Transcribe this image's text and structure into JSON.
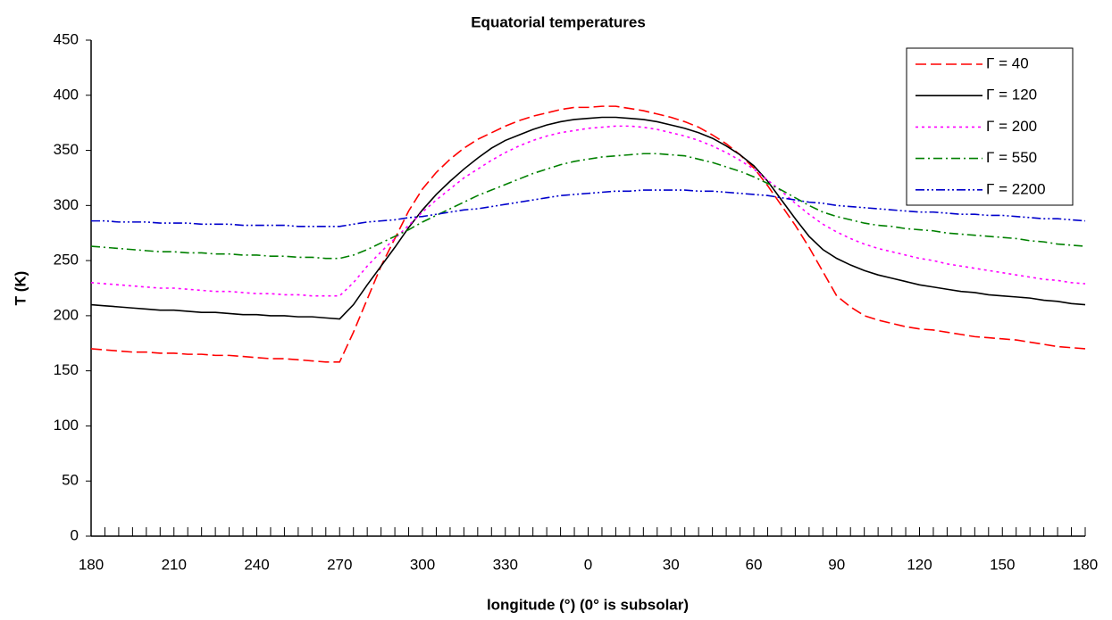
{
  "chart_data": {
    "type": "line",
    "title": "Equatorial temperatures",
    "x_label": "longitude (°) (0° is subsolar)",
    "y_label": "T (K)",
    "categories": [
      "180",
      null,
      null,
      null,
      null,
      null,
      "210",
      null,
      null,
      null,
      null,
      null,
      "240",
      null,
      null,
      null,
      null,
      null,
      "270",
      null,
      null,
      null,
      null,
      null,
      "300",
      null,
      null,
      null,
      null,
      null,
      "330",
      null,
      null,
      null,
      null,
      null,
      "0",
      null,
      null,
      null,
      null,
      null,
      "30",
      null,
      null,
      null,
      null,
      null,
      "60",
      null,
      null,
      null,
      null,
      null,
      "90",
      null,
      null,
      null,
      null,
      null,
      "120",
      null,
      null,
      null,
      null,
      null,
      "150",
      null,
      null,
      null,
      null,
      null,
      "180"
    ],
    "ylim": [
      0,
      450
    ],
    "yticks": [
      0,
      50,
      100,
      150,
      200,
      250,
      300,
      350,
      400,
      450
    ],
    "grid": false,
    "legend": "top-right",
    "series": [
      {
        "name": "Γ = 40",
        "color": "#ff0000",
        "dash": "dashed",
        "values": [
          170,
          169,
          168,
          167,
          167,
          166,
          166,
          165,
          165,
          164,
          164,
          163,
          162,
          161,
          161,
          160,
          159,
          158,
          158,
          185,
          215,
          245,
          270,
          295,
          315,
          330,
          342,
          352,
          360,
          366,
          372,
          377,
          381,
          384,
          387,
          389,
          389,
          390,
          390,
          388,
          386,
          383,
          380,
          376,
          371,
          364,
          356,
          346,
          334,
          318,
          300,
          282,
          262,
          240,
          218,
          208,
          200,
          196,
          193,
          190,
          188,
          187,
          185,
          183,
          181,
          180,
          179,
          178,
          176,
          174,
          172,
          171,
          170
        ]
      },
      {
        "name": "Γ = 120",
        "color": "#000000",
        "dash": "solid",
        "values": [
          210,
          209,
          208,
          207,
          206,
          205,
          205,
          204,
          203,
          203,
          202,
          201,
          201,
          200,
          200,
          199,
          199,
          198,
          197,
          210,
          228,
          245,
          262,
          280,
          296,
          310,
          322,
          333,
          343,
          352,
          359,
          364,
          369,
          373,
          376,
          378,
          379,
          380,
          380,
          379,
          378,
          376,
          373,
          370,
          366,
          361,
          354,
          346,
          336,
          322,
          305,
          288,
          272,
          260,
          252,
          246,
          241,
          237,
          234,
          231,
          228,
          226,
          224,
          222,
          221,
          219,
          218,
          217,
          216,
          214,
          213,
          211,
          210
        ]
      },
      {
        "name": "Γ = 200",
        "color": "#ff00ff",
        "dash": "dotted",
        "values": [
          230,
          229,
          228,
          227,
          226,
          225,
          225,
          224,
          223,
          222,
          222,
          221,
          220,
          220,
          219,
          219,
          218,
          218,
          218,
          230,
          245,
          258,
          270,
          282,
          294,
          305,
          315,
          325,
          333,
          341,
          348,
          354,
          359,
          363,
          366,
          368,
          370,
          371,
          372,
          372,
          371,
          369,
          366,
          363,
          359,
          354,
          348,
          341,
          333,
          323,
          313,
          302,
          292,
          283,
          276,
          270,
          265,
          261,
          258,
          255,
          252,
          250,
          247,
          245,
          243,
          241,
          239,
          237,
          235,
          233,
          232,
          230,
          229
        ]
      },
      {
        "name": "Γ = 550",
        "color": "#008000",
        "dash": "dashdot",
        "values": [
          263,
          262,
          261,
          260,
          259,
          258,
          258,
          257,
          257,
          256,
          256,
          255,
          255,
          254,
          254,
          253,
          253,
          252,
          252,
          255,
          260,
          266,
          272,
          278,
          285,
          291,
          297,
          303,
          309,
          314,
          319,
          324,
          329,
          333,
          337,
          340,
          342,
          344,
          345,
          346,
          347,
          347,
          346,
          345,
          342,
          339,
          335,
          331,
          326,
          320,
          314,
          307,
          300,
          294,
          290,
          287,
          284,
          282,
          281,
          279,
          278,
          277,
          275,
          274,
          273,
          272,
          271,
          270,
          268,
          267,
          265,
          264,
          263
        ]
      },
      {
        "name": "Γ = 2200",
        "color": "#0000cc",
        "dash": "dashdotdot",
        "values": [
          286,
          286,
          285,
          285,
          285,
          284,
          284,
          284,
          283,
          283,
          283,
          282,
          282,
          282,
          282,
          281,
          281,
          281,
          281,
          283,
          285,
          286,
          287,
          289,
          290,
          292,
          294,
          296,
          297,
          299,
          301,
          303,
          305,
          307,
          309,
          310,
          311,
          312,
          313,
          313,
          314,
          314,
          314,
          314,
          313,
          313,
          312,
          311,
          310,
          309,
          307,
          305,
          303,
          302,
          300,
          299,
          298,
          297,
          296,
          295,
          294,
          294,
          293,
          292,
          292,
          291,
          291,
          290,
          289,
          288,
          288,
          287,
          286
        ]
      }
    ]
  }
}
